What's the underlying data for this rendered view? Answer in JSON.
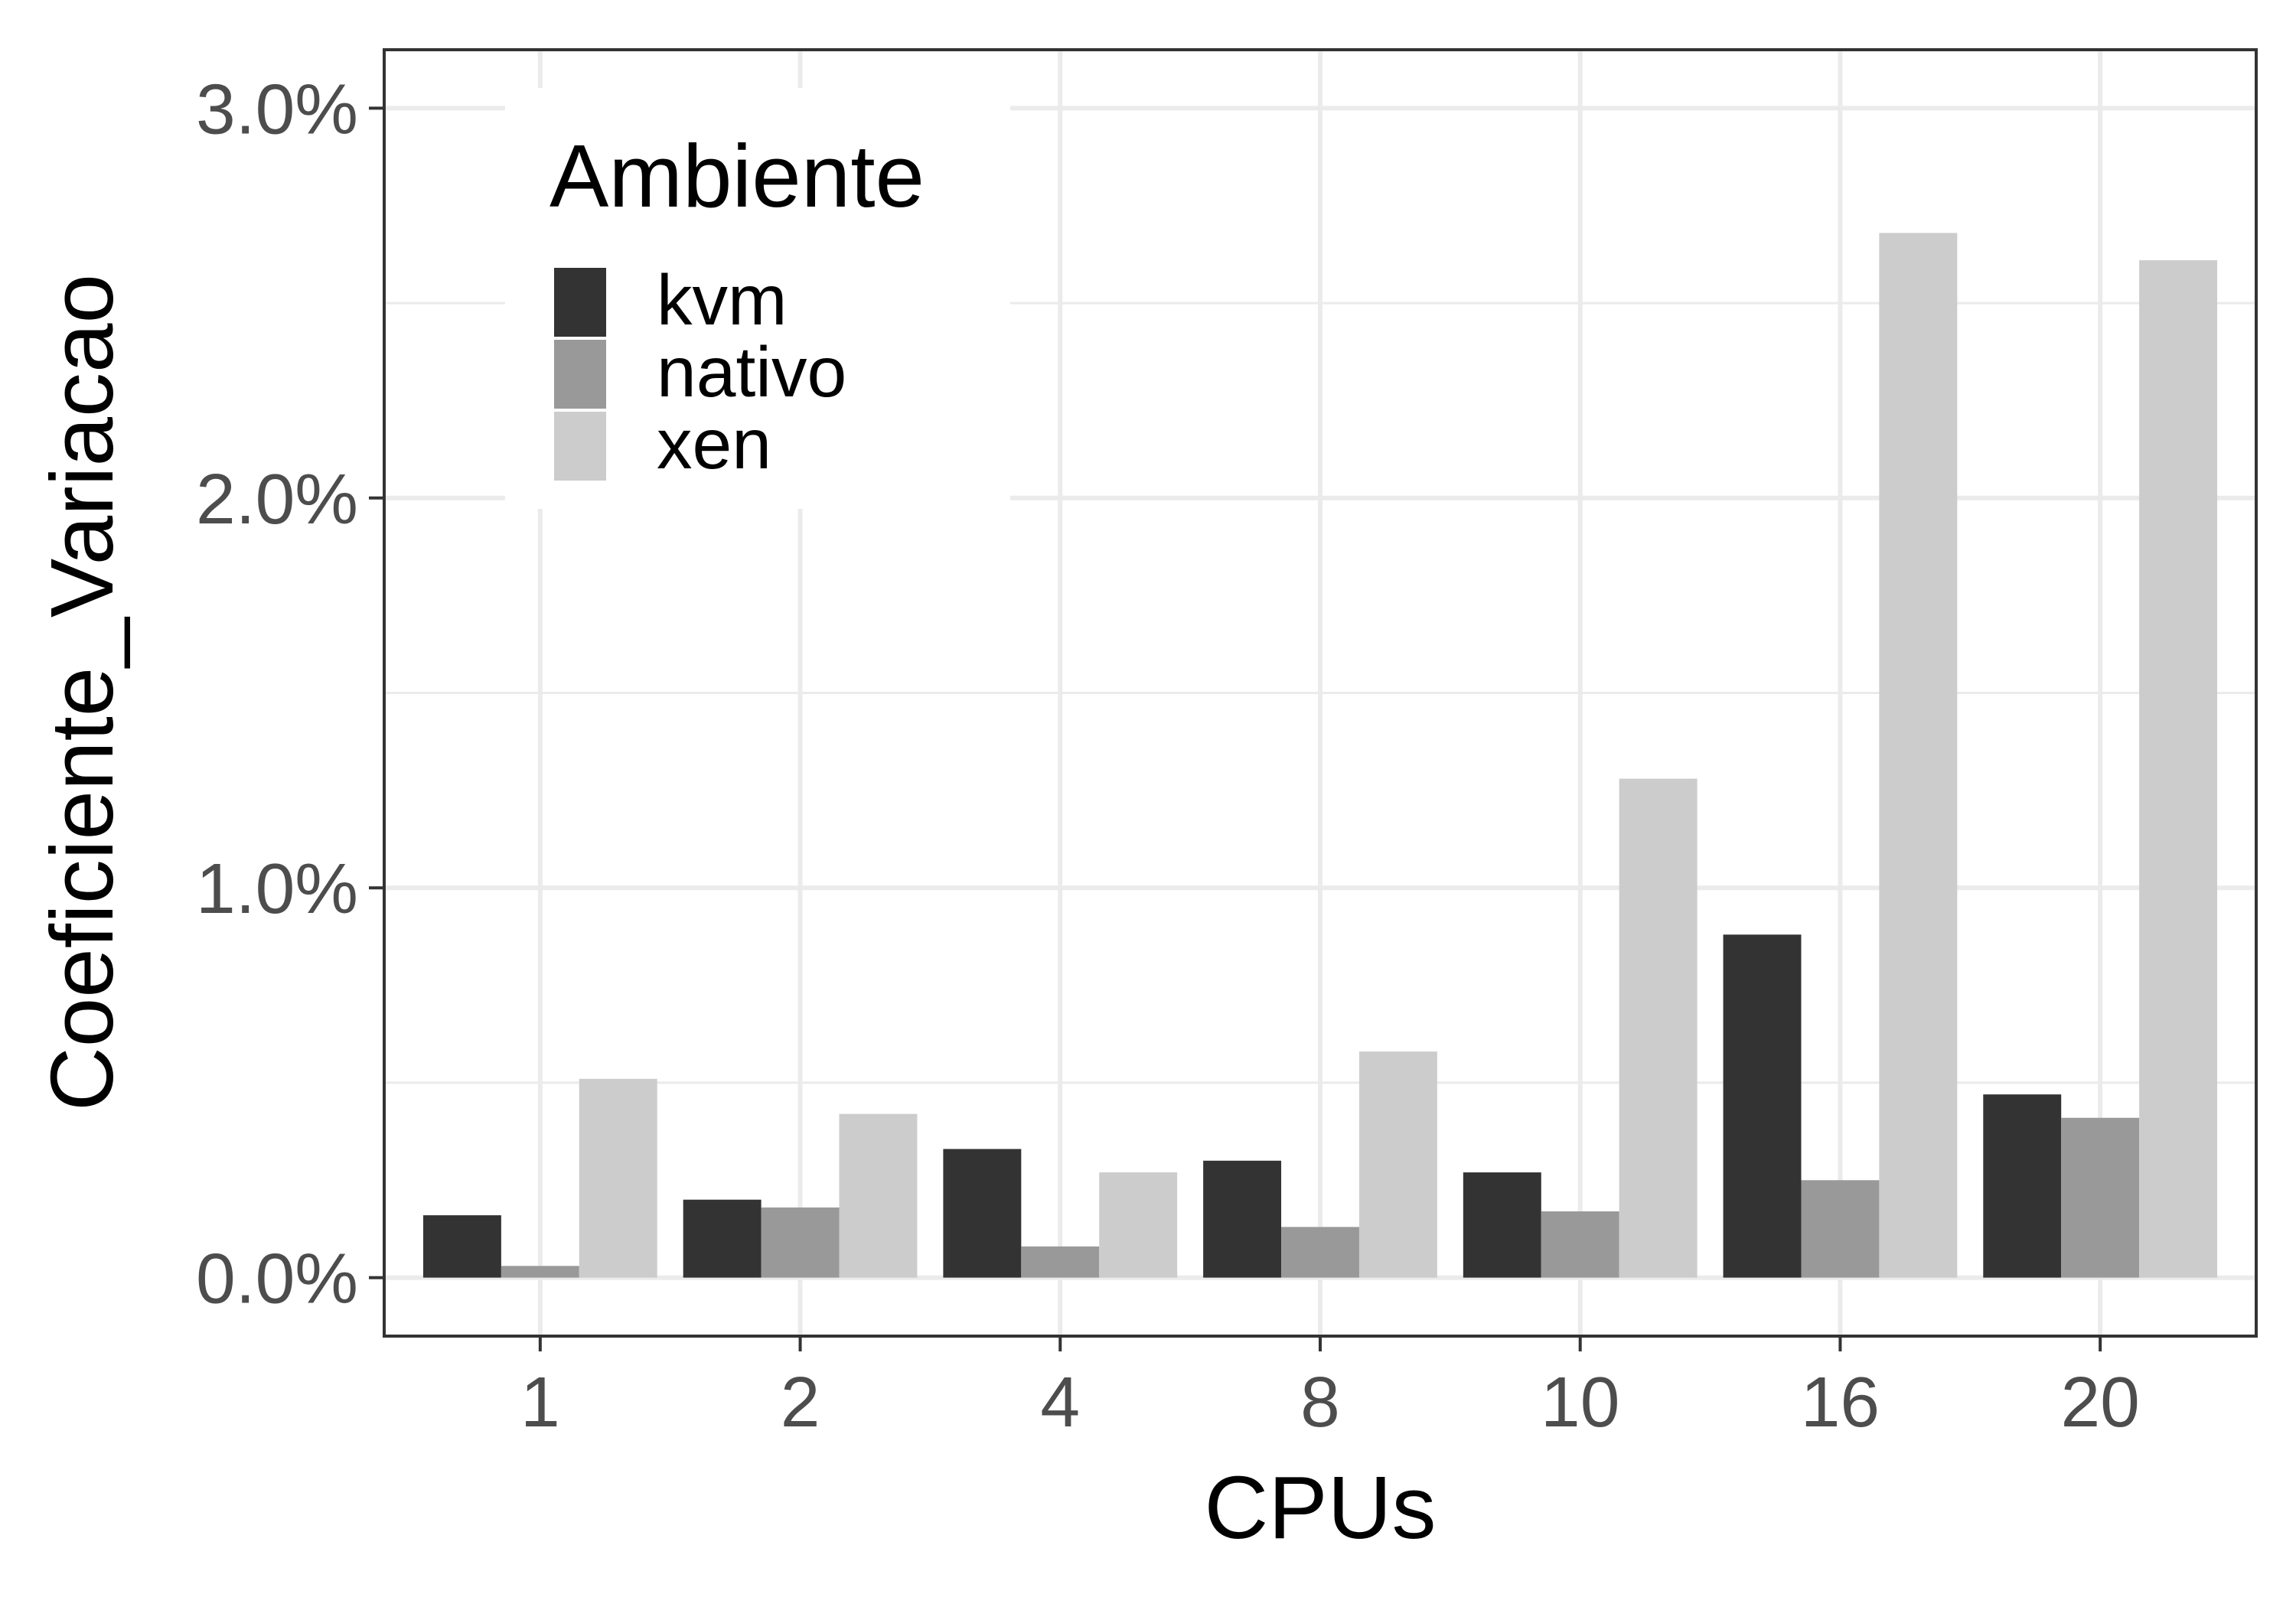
{
  "chart_data": {
    "type": "bar",
    "xlabel": "CPUs",
    "ylabel": "Coeficiente_Variacao",
    "categories": [
      "1",
      "2",
      "4",
      "8",
      "10",
      "16",
      "20"
    ],
    "y_ticks": [
      "0.0%",
      "1.0%",
      "2.0%",
      "3.0%"
    ],
    "ylim": [
      -0.0015,
      0.0315
    ],
    "grid": true,
    "legend": {
      "title": "Ambiente",
      "position": "top-left"
    },
    "series": [
      {
        "name": "kvm",
        "color": "#333333",
        "values": [
          0.0016,
          0.002,
          0.0033,
          0.003,
          0.0027,
          0.0088,
          0.0047
        ]
      },
      {
        "name": "nativo",
        "color": "#999999",
        "values": [
          0.0003,
          0.0018,
          0.0008,
          0.0013,
          0.0017,
          0.0025,
          0.0041
        ]
      },
      {
        "name": "xen",
        "color": "#cccccc",
        "values": [
          0.0051,
          0.0042,
          0.0027,
          0.0058,
          0.0128,
          0.0268,
          0.0261
        ]
      }
    ]
  }
}
